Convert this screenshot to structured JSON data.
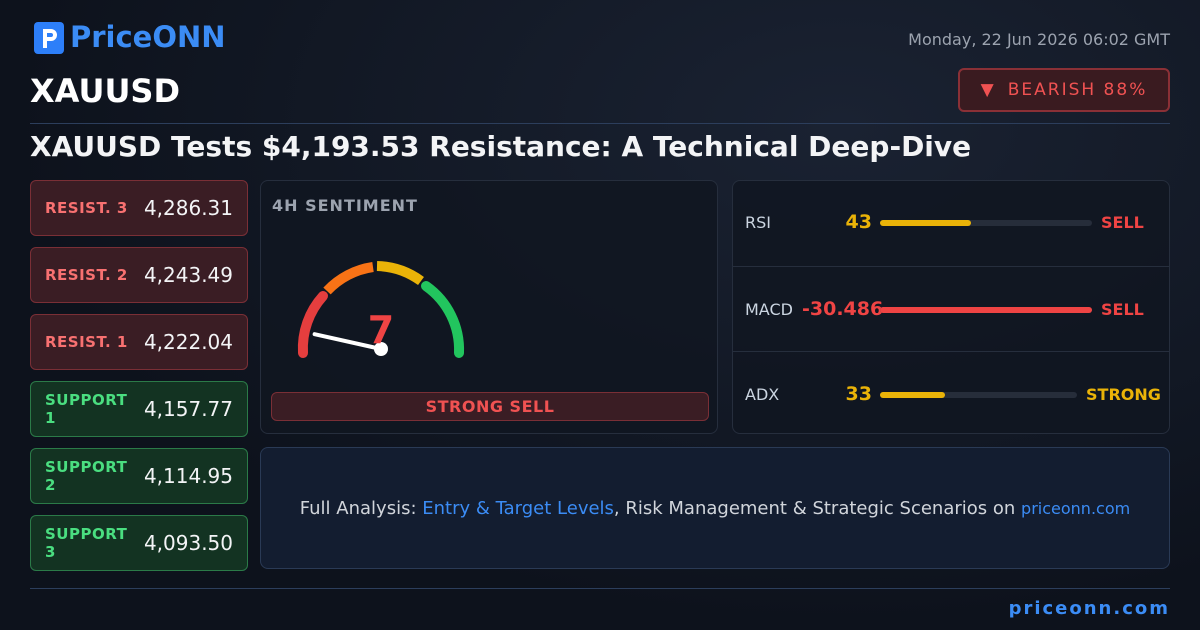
{
  "header": {
    "logo": "PriceONN",
    "date": "Monday, 22 Jun 2026 06:02 GMT",
    "symbol": "XAUUSD",
    "badge": "BEARISH 88%"
  },
  "headline": "XAUUSD Tests $4,193.53 Resistance: A Technical Deep-Dive",
  "levels": [
    {
      "label": "RESIST. 3",
      "value": "4,286.31",
      "kind": "resist"
    },
    {
      "label": "RESIST. 2",
      "value": "4,243.49",
      "kind": "resist"
    },
    {
      "label": "RESIST. 1",
      "value": "4,222.04",
      "kind": "resist"
    },
    {
      "label": "SUPPORT 1",
      "value": "4,157.77",
      "kind": "support"
    },
    {
      "label": "SUPPORT 2",
      "value": "4,114.95",
      "kind": "support"
    },
    {
      "label": "SUPPORT 3",
      "value": "4,093.50",
      "kind": "support"
    }
  ],
  "sentiment": {
    "title": "4H SENTIMENT",
    "score": 7,
    "gauge_range": [
      0,
      100
    ],
    "verdict": "STRONG SELL"
  },
  "indicators": [
    {
      "name": "RSI",
      "value": 43,
      "signal": "SELL",
      "color": "#eab308",
      "signal_color": "#ef4444",
      "scale": [
        0,
        100
      ]
    },
    {
      "name": "MACD",
      "value": -30.486,
      "signal": "SELL",
      "color": "#ef4444",
      "signal_color": "#ef4444"
    },
    {
      "name": "ADX",
      "value": 33,
      "signal": "STRONG",
      "color": "#eab308",
      "signal_color": "#eab308",
      "scale": [
        0,
        100
      ]
    }
  ],
  "cta": {
    "lead": "Full Analysis:",
    "link": "Entry & Target Levels",
    "rest": ", Risk Management & Strategic Scenarios on",
    "site": "priceonn.com"
  },
  "footer": "priceonn.com"
}
